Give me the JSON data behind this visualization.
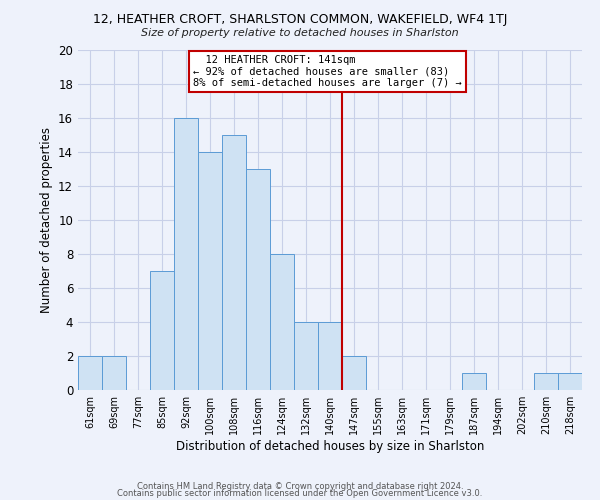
{
  "title": "12, HEATHER CROFT, SHARLSTON COMMON, WAKEFIELD, WF4 1TJ",
  "subtitle": "Size of property relative to detached houses in Sharlston",
  "xlabel": "Distribution of detached houses by size in Sharlston",
  "ylabel": "Number of detached properties",
  "footer_line1": "Contains HM Land Registry data © Crown copyright and database right 2024.",
  "footer_line2": "Contains public sector information licensed under the Open Government Licence v3.0.",
  "bin_labels": [
    "61sqm",
    "69sqm",
    "77sqm",
    "85sqm",
    "92sqm",
    "100sqm",
    "108sqm",
    "116sqm",
    "124sqm",
    "132sqm",
    "140sqm",
    "147sqm",
    "155sqm",
    "163sqm",
    "171sqm",
    "179sqm",
    "187sqm",
    "194sqm",
    "202sqm",
    "210sqm",
    "218sqm"
  ],
  "bar_values": [
    2,
    2,
    0,
    7,
    16,
    14,
    15,
    13,
    8,
    4,
    4,
    2,
    0,
    0,
    0,
    0,
    1,
    0,
    0,
    1,
    1
  ],
  "bar_color": "#cfe2f3",
  "bar_edgecolor": "#5b9bd5",
  "vline_x": 10.5,
  "vline_color": "#c00000",
  "annotation_title": "12 HEATHER CROFT: 141sqm",
  "annotation_line1": "← 92% of detached houses are smaller (83)",
  "annotation_line2": "8% of semi-detached houses are larger (7) →",
  "annotation_box_color": "#c00000",
  "ylim": [
    0,
    20
  ],
  "yticks": [
    0,
    2,
    4,
    6,
    8,
    10,
    12,
    14,
    16,
    18,
    20
  ],
  "background_color": "#eef2fb",
  "grid_color": "#c8d0e8"
}
